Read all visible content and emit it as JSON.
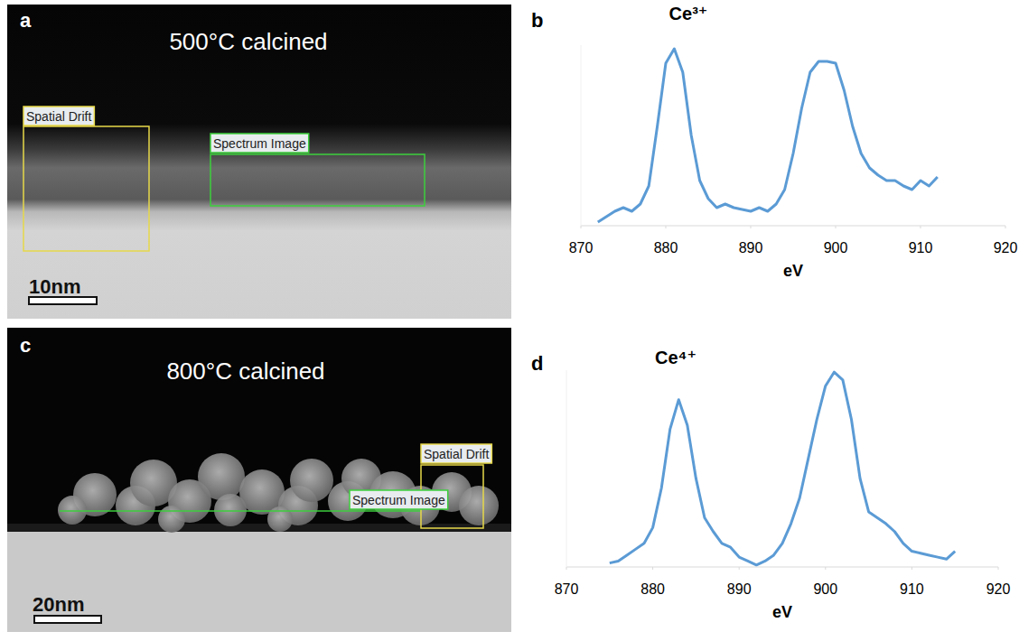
{
  "images": [
    {
      "letter": "a",
      "title": "500°C calcined",
      "drift_label": "Spatial Drift",
      "spectrum_label": "Spectrum Image",
      "scale_bar": "10nm"
    },
    {
      "letter": "c",
      "title": "800°C calcined",
      "drift_label": "Spatial Drift",
      "spectrum_label": "Spectrum Image",
      "scale_bar": "20nm"
    }
  ],
  "chart_data": [
    {
      "letter": "b",
      "type": "line",
      "title": "Ce³⁺",
      "x_label": "eV",
      "x": [
        872,
        873,
        874,
        875,
        876,
        877,
        878,
        879,
        880,
        881,
        882,
        883,
        884,
        885,
        886,
        887,
        888,
        889,
        890,
        891,
        892,
        893,
        894,
        895,
        896,
        897,
        898,
        899,
        900,
        901,
        902,
        903,
        904,
        905,
        906,
        907,
        908,
        909,
        910,
        911,
        912
      ],
      "values": [
        2,
        5,
        8,
        10,
        8,
        12,
        22,
        55,
        90,
        98,
        85,
        50,
        25,
        15,
        10,
        12,
        10,
        9,
        8,
        10,
        8,
        12,
        20,
        40,
        65,
        85,
        91,
        91,
        90,
        75,
        55,
        40,
        32,
        28,
        25,
        25,
        22,
        20,
        25,
        22,
        27
      ],
      "color": "#5b9bd5",
      "xlim": [
        870,
        920
      ],
      "xticks": [
        870,
        880,
        890,
        900,
        910,
        920
      ],
      "ylim": [
        0,
        100
      ],
      "tick_labels": "x"
    },
    {
      "letter": "d",
      "type": "line",
      "title": "Ce⁴⁺",
      "x_label": "eV",
      "x": [
        875,
        876,
        877,
        878,
        879,
        880,
        881,
        882,
        883,
        884,
        885,
        886,
        887,
        888,
        889,
        890,
        891,
        892,
        893,
        894,
        895,
        896,
        897,
        898,
        899,
        900,
        901,
        902,
        903,
        904,
        905,
        906,
        907,
        908,
        909,
        910,
        911,
        912,
        913,
        914,
        915
      ],
      "values": [
        2,
        3,
        6,
        9,
        12,
        20,
        40,
        70,
        85,
        72,
        45,
        25,
        18,
        12,
        10,
        5,
        3,
        1,
        3,
        6,
        12,
        22,
        35,
        55,
        75,
        92,
        99,
        95,
        75,
        45,
        28,
        25,
        22,
        18,
        12,
        8,
        7,
        6,
        5,
        4,
        8
      ],
      "color": "#5b9bd5",
      "xlim": [
        870,
        920
      ],
      "xticks": [
        870,
        880,
        890,
        900,
        910,
        920
      ],
      "ylim": [
        0,
        100
      ],
      "tick_labels": "x"
    }
  ]
}
